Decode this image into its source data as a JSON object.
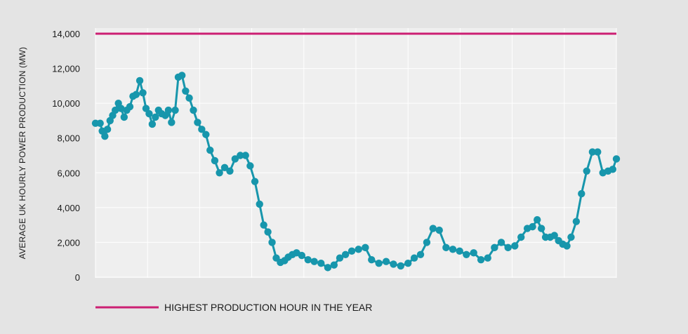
{
  "chart_data": {
    "type": "line",
    "title": "",
    "xlabel": "",
    "ylabel": "AVERAGE UK HOURLY POWER PRODUCTION (MW)",
    "ylim": [
      0,
      14000
    ],
    "yticks": [
      0,
      2000,
      4000,
      6000,
      8000,
      10000,
      12000,
      14000
    ],
    "ytick_labels": [
      "0",
      "2,000",
      "4,000",
      "6,000",
      "8,000",
      "10,000",
      "12,000",
      "14,000"
    ],
    "xlim": [
      0,
      100
    ],
    "x_gridlines": [
      0,
      10,
      20,
      30,
      40,
      50,
      60,
      70,
      80,
      90,
      100
    ],
    "grid": true,
    "legend_position": "bottom-left",
    "colors": {
      "background": "#e4e4e4",
      "plot": "#efefef",
      "grid": "#ffffff",
      "series": "#1796ac",
      "reference": "#cc1f73"
    },
    "series": [
      {
        "label": "",
        "kind": "line-with-markers",
        "x": [
          0,
          0.9,
          1.3,
          1.8,
          2.3,
          2.8,
          3.3,
          3.8,
          4.4,
          4.9,
          5.5,
          6,
          6.6,
          7.2,
          7.8,
          8.5,
          9.1,
          9.7,
          10.3,
          10.9,
          11.5,
          12.1,
          12.7,
          13.4,
          14,
          14.6,
          15.3,
          15.9,
          16.6,
          17.3,
          18,
          18.8,
          19.6,
          20.4,
          21.2,
          22,
          22.9,
          23.8,
          24.8,
          25.8,
          26.8,
          27.8,
          28.8,
          29.7,
          30.6,
          31.5,
          32.3,
          33.1,
          33.9,
          34.7,
          35.5,
          36.3,
          37,
          37.8,
          38.6,
          39.6,
          40.8,
          42,
          43.3,
          44.6,
          45.8,
          46.9,
          48,
          49.2,
          50.5,
          51.8,
          53,
          54.4,
          55.8,
          57.2,
          58.6,
          60,
          61.2,
          62.4,
          63.6,
          64.8,
          66,
          67.3,
          68.6,
          69.9,
          71.2,
          72.6,
          74,
          75.3,
          76.6,
          77.9,
          79.2,
          80.5,
          81.7,
          82.9,
          83.9,
          84.8,
          85.6,
          86.4,
          87.3,
          88.1,
          88.9,
          89.7,
          90.5,
          91.3,
          92.3,
          93.3,
          94.3,
          95.4,
          96.4,
          97.4,
          98.4,
          99.3,
          100
        ],
        "y": [
          8850,
          8850,
          8400,
          8100,
          8500,
          9000,
          9300,
          9600,
          10000,
          9700,
          9200,
          9600,
          9800,
          10400,
          10500,
          11300,
          10600,
          9700,
          9400,
          8800,
          9200,
          9600,
          9400,
          9300,
          9600,
          8900,
          9600,
          11500,
          11600,
          10700,
          10300,
          9600,
          8900,
          8500,
          8200,
          7300,
          6700,
          6000,
          6300,
          6100,
          6800,
          7000,
          7000,
          6400,
          5500,
          4200,
          3000,
          2600,
          2000,
          1100,
          850,
          950,
          1150,
          1300,
          1400,
          1250,
          1000,
          900,
          800,
          550,
          700,
          1100,
          1300,
          1500,
          1600,
          1700,
          1000,
          800,
          900,
          750,
          650,
          800,
          1100,
          1300,
          2000,
          2800,
          2700,
          1700,
          1600,
          1500,
          1300,
          1400,
          1000,
          1100,
          1700,
          2000,
          1700,
          1800,
          2300,
          2800,
          2900,
          3300,
          2800,
          2300,
          2300,
          2400,
          2100,
          1900,
          1800,
          2300,
          3200,
          4800,
          6100,
          7200,
          7200,
          6000,
          6100,
          6200,
          6800
        ]
      },
      {
        "label": "HIGHEST PRODUCTION HOUR IN THE YEAR",
        "kind": "reference-line",
        "value": 14000
      }
    ]
  }
}
